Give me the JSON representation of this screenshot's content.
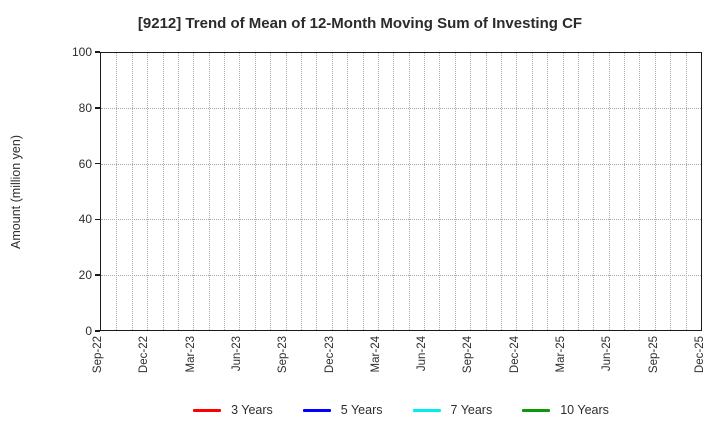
{
  "title": "[9212]  Trend of Mean of 12-Month Moving Sum of Investing CF",
  "colors": {
    "frame": "#1a1a1a",
    "grid": "#aaaaaa",
    "background": "#ffffff"
  },
  "y_axis": {
    "label": "Amount (million yen)",
    "tick_labels": [
      "0",
      "20",
      "40",
      "60",
      "80",
      "100"
    ],
    "min": 0,
    "max": 100
  },
  "x_axis": {
    "tick_labels": [
      "Sep-22",
      "Dec-22",
      "Mar-23",
      "Jun-23",
      "Sep-23",
      "Dec-23",
      "Mar-24",
      "Jun-24",
      "Sep-24",
      "Dec-24",
      "Mar-25",
      "Jun-25",
      "Sep-25",
      "Dec-25"
    ],
    "months_between_labels": 3,
    "total_month_intervals": 39
  },
  "legend": {
    "items": [
      {
        "label": "3 Years",
        "color": "#ff0000"
      },
      {
        "label": "5 Years",
        "color": "#0000ff"
      },
      {
        "label": "7 Years",
        "color": "#00eeee"
      },
      {
        "label": "10 Years",
        "color": "#0a9a0a"
      }
    ]
  },
  "chart_data": {
    "type": "line",
    "title": "[9212]  Trend of Mean of 12-Month Moving Sum of Investing CF",
    "xlabel": "",
    "ylabel": "Amount (million yen)",
    "ylim": [
      0,
      100
    ],
    "x": [
      "Sep-22",
      "Dec-22",
      "Mar-23",
      "Jun-23",
      "Sep-23",
      "Dec-23",
      "Mar-24",
      "Jun-24",
      "Sep-24",
      "Dec-24",
      "Mar-25",
      "Jun-25",
      "Sep-25",
      "Dec-25"
    ],
    "series": [
      {
        "name": "3 Years",
        "color": "#ff0000",
        "values": []
      },
      {
        "name": "5 Years",
        "color": "#0000ff",
        "values": []
      },
      {
        "name": "7 Years",
        "color": "#00eeee",
        "values": []
      },
      {
        "name": "10 Years",
        "color": "#0a9a0a",
        "values": []
      }
    ],
    "grid": true,
    "grid_style": "dotted",
    "legend_position": "bottom"
  }
}
